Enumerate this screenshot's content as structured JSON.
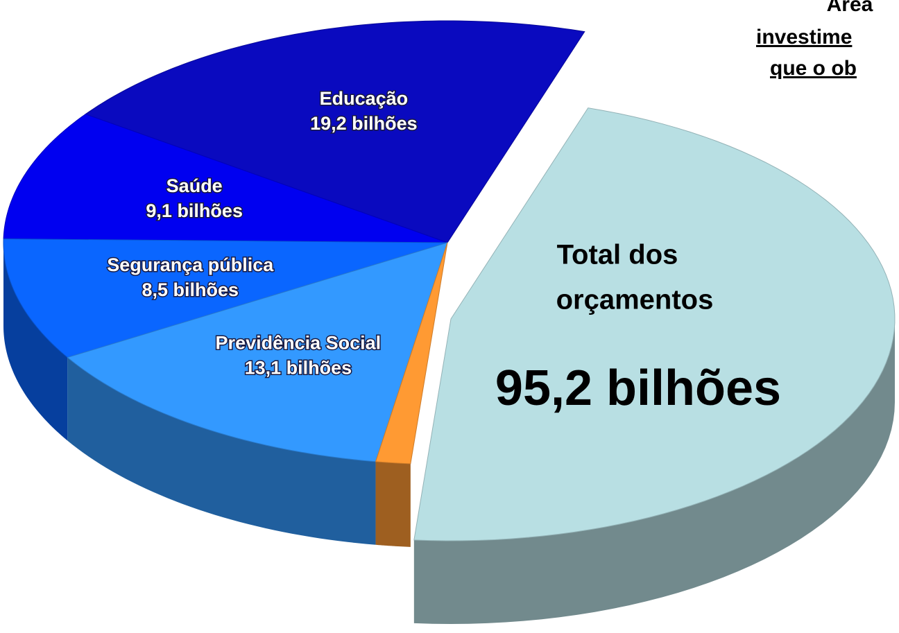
{
  "chart_data": {
    "type": "pie3d",
    "categories": [
      "Educação",
      "Saúde",
      "Segurança pública",
      "Previdência Social",
      null
    ],
    "values": [
      19.2,
      9.1,
      8.5,
      13.1,
      1.2
    ],
    "value_labels": [
      "19,2 bilhões",
      "9,1 bilhões",
      "8,5 bilhões",
      "13,1 bilhões",
      null
    ],
    "colors": [
      "#0a0abf",
      "#0000f0",
      "#0a66ff",
      "#3399ff",
      "#ff9a33"
    ],
    "total": 95.2,
    "total_label": "95,2 bilhões",
    "total_title": [
      "Total dos",
      "orçamentos"
    ],
    "total_color": "#b8dfe3",
    "annotations": [
      "Área",
      "investime",
      "que o ob"
    ]
  }
}
